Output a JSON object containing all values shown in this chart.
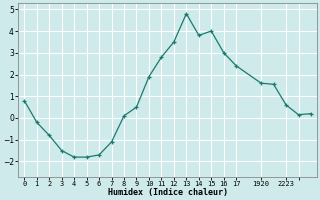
{
  "x": [
    0,
    1,
    2,
    3,
    4,
    5,
    6,
    7,
    8,
    9,
    10,
    11,
    12,
    13,
    14,
    15,
    16,
    17,
    19,
    20,
    21,
    22,
    23
  ],
  "y": [
    0.8,
    -0.2,
    -0.8,
    -1.5,
    -1.8,
    -1.8,
    -1.7,
    -1.1,
    0.1,
    0.5,
    1.9,
    2.8,
    3.5,
    4.8,
    3.8,
    4.0,
    3.0,
    2.4,
    1.6,
    1.55,
    0.6,
    0.15,
    0.2
  ],
  "xlabel": "Humidex (Indice chaleur)",
  "xlim": [
    -0.5,
    23.5
  ],
  "ylim": [
    -2.7,
    5.3
  ],
  "yticks": [
    -2,
    -1,
    0,
    1,
    2,
    3,
    4,
    5
  ],
  "line_color": "#1a7a6e",
  "marker": "+",
  "bg_color": "#ceeaea",
  "grid_color": "#ffffff",
  "xtick_positions": [
    0,
    1,
    2,
    3,
    4,
    5,
    6,
    7,
    8,
    9,
    10,
    11,
    12,
    13,
    14,
    15,
    16,
    17,
    19,
    21,
    22
  ],
  "xtick_labels": [
    "0",
    "1",
    "2",
    "3",
    "4",
    "5",
    "6",
    "7",
    "8",
    "9",
    "10",
    "11",
    "12",
    "13",
    "14",
    "15",
    "16",
    "17",
    "1920",
    "2223",
    ""
  ]
}
